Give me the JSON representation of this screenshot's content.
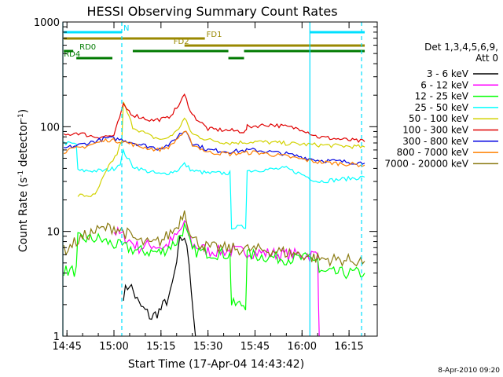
{
  "chart_data": {
    "type": "line",
    "title": "HESSI Observing Summary Count Rates",
    "xlabel": "Start Time (17-Apr-04 14:43:42)",
    "ylabel_main": "Count Rate (s",
    "ylabel_sup1": "-1",
    "ylabel_mid": " detector",
    "ylabel_sup2": "-1",
    "ylabel_end": ")",
    "y_scale": "log",
    "ylim": [
      1,
      1000
    ],
    "xlim": [
      "14:43:42",
      "16:24:00"
    ],
    "x_ticks": [
      "14:45",
      "15:00",
      "15:15",
      "15:30",
      "15:45",
      "16:00",
      "16:15"
    ],
    "y_ticks": [
      "1",
      "10",
      "100",
      "1000"
    ],
    "legend_header": [
      "Det 1,3,4,5,6,9,",
      "Att 0"
    ],
    "footer_date": "8-Apr-2010 09:20",
    "series": [
      {
        "name": "3 - 6 keV",
        "color": "#000000",
        "points": [
          [
            "15:03:00",
            2.5
          ],
          [
            "15:05:00",
            3.2
          ],
          [
            "15:08:00",
            2.0
          ],
          [
            "15:12:00",
            1.5
          ],
          [
            "15:15:00",
            1.8
          ],
          [
            "15:18:00",
            2.5
          ],
          [
            "15:20:00",
            5.0
          ],
          [
            "15:21:00",
            8.0
          ],
          [
            "15:22:30",
            9.0
          ],
          [
            "15:24:00",
            5.0
          ],
          [
            "15:26:00",
            1.0
          ]
        ]
      },
      {
        "name": "6 - 12 keV",
        "color": "#ff00ff",
        "points": [
          [
            "15:00:00",
            10.0
          ],
          [
            "15:03:00",
            9.0
          ],
          [
            "15:08:00",
            7.0
          ],
          [
            "15:12:00",
            7.5
          ],
          [
            "15:16:00",
            7.0
          ],
          [
            "15:20:00",
            9.0
          ],
          [
            "15:22:30",
            12.0
          ],
          [
            "15:25:00",
            7.5
          ],
          [
            "15:30:00",
            6.5
          ],
          [
            "15:38:00",
            6.5
          ],
          [
            "15:45:00",
            6.3
          ],
          [
            "15:55:00",
            6.0
          ],
          [
            "16:05:00",
            6.0
          ],
          [
            "16:05:30",
            1.0
          ]
        ]
      },
      {
        "name": "12 - 25 keV",
        "color": "#00ff00",
        "points": [
          [
            "14:44:00",
            4.2
          ],
          [
            "14:48:00",
            4.2
          ],
          [
            "14:48:30",
            8.5
          ],
          [
            "14:55:00",
            8.5
          ],
          [
            "15:00:00",
            7.5
          ],
          [
            "15:08:00",
            6.5
          ],
          [
            "15:15:00",
            6.3
          ],
          [
            "15:20:00",
            8.0
          ],
          [
            "15:22:30",
            11.0
          ],
          [
            "15:25:00",
            6.5
          ],
          [
            "15:37:00",
            6.0
          ],
          [
            "15:37:30",
            2.0
          ],
          [
            "15:42:00",
            2.0
          ],
          [
            "15:42:30",
            6.0
          ],
          [
            "15:55:00",
            5.5
          ],
          [
            "16:05:00",
            5.5
          ],
          [
            "16:05:30",
            4.0
          ],
          [
            "16:20:00",
            4.0
          ]
        ]
      },
      {
        "name": "25 - 50 keV",
        "color": "#00ffff",
        "points": [
          [
            "14:44:00",
            70
          ],
          [
            "14:48:00",
            68
          ],
          [
            "14:48:30",
            38
          ],
          [
            "14:57:00",
            38
          ],
          [
            "15:00:00",
            40
          ],
          [
            "15:02:00",
            45
          ],
          [
            "15:03:00",
            58
          ],
          [
            "15:06:00",
            42
          ],
          [
            "15:10:00",
            38
          ],
          [
            "15:15:00",
            35
          ],
          [
            "15:20:00",
            38
          ],
          [
            "15:22:30",
            44
          ],
          [
            "15:25:00",
            38
          ],
          [
            "15:30:00",
            36
          ],
          [
            "15:37:00",
            36
          ],
          [
            "15:37:30",
            11
          ],
          [
            "15:42:00",
            11
          ],
          [
            "15:42:30",
            38
          ],
          [
            "15:55:00",
            40
          ],
          [
            "16:00:00",
            35
          ],
          [
            "16:05:00",
            30
          ],
          [
            "16:20:00",
            33
          ]
        ]
      },
      {
        "name": "50 - 100 keV",
        "color": "#d2d200",
        "points": [
          [
            "14:48:30",
            22
          ],
          [
            "14:54:00",
            22
          ],
          [
            "14:56:00",
            30
          ],
          [
            "14:59:00",
            45
          ],
          [
            "15:01:00",
            55
          ],
          [
            "15:02:30",
            75
          ],
          [
            "15:03:00",
            170
          ],
          [
            "15:06:00",
            100
          ],
          [
            "15:12:00",
            80
          ],
          [
            "15:16:00",
            75
          ],
          [
            "15:20:00",
            90
          ],
          [
            "15:22:30",
            120
          ],
          [
            "15:25:00",
            85
          ],
          [
            "15:30:00",
            75
          ],
          [
            "15:37:00",
            70
          ],
          [
            "15:45:00",
            72
          ],
          [
            "16:00:00",
            68
          ],
          [
            "16:20:00",
            64
          ]
        ]
      },
      {
        "name": "100 - 300 keV",
        "color": "#e00000",
        "points": [
          [
            "14:44:00",
            82
          ],
          [
            "14:48:00",
            88
          ],
          [
            "14:54:00",
            80
          ],
          [
            "15:00:00",
            82
          ],
          [
            "15:03:00",
            160
          ],
          [
            "15:06:00",
            130
          ],
          [
            "15:12:00",
            115
          ],
          [
            "15:17:00",
            120
          ],
          [
            "15:20:00",
            150
          ],
          [
            "15:22:30",
            200
          ],
          [
            "15:25:00",
            130
          ],
          [
            "15:30:00",
            95
          ],
          [
            "15:37:00",
            92
          ],
          [
            "15:42:00",
            90
          ],
          [
            "15:42:30",
            100
          ],
          [
            "15:50:00",
            105
          ],
          [
            "16:00:00",
            95
          ],
          [
            "16:05:00",
            80
          ],
          [
            "16:20:00",
            72
          ]
        ]
      },
      {
        "name": "300 - 800 keV",
        "color": "#0000e0",
        "points": [
          [
            "14:44:00",
            62
          ],
          [
            "14:50:00",
            68
          ],
          [
            "14:58:00",
            78
          ],
          [
            "15:03:00",
            75
          ],
          [
            "15:08:00",
            68
          ],
          [
            "15:14:00",
            62
          ],
          [
            "15:18:00",
            68
          ],
          [
            "15:21:00",
            85
          ],
          [
            "15:23:00",
            92
          ],
          [
            "15:25:00",
            70
          ],
          [
            "15:30:00",
            60
          ],
          [
            "15:37:00",
            58
          ],
          [
            "15:45:00",
            60
          ],
          [
            "15:55:00",
            55
          ],
          [
            "16:05:00",
            48
          ],
          [
            "16:20:00",
            45
          ]
        ]
      },
      {
        "name": "800 - 7000 keV",
        "color": "#ff8000",
        "points": [
          [
            "14:44:00",
            58
          ],
          [
            "14:50:00",
            64
          ],
          [
            "14:58:00",
            75
          ],
          [
            "15:03:00",
            72
          ],
          [
            "15:08:00",
            65
          ],
          [
            "15:14:00",
            60
          ],
          [
            "15:18:00",
            65
          ],
          [
            "15:21:00",
            82
          ],
          [
            "15:23:00",
            88
          ],
          [
            "15:25:00",
            68
          ],
          [
            "15:30:00",
            57
          ],
          [
            "15:37:00",
            55
          ],
          [
            "15:45:00",
            57
          ],
          [
            "15:55:00",
            52
          ],
          [
            "16:05:00",
            46
          ],
          [
            "16:20:00",
            43
          ]
        ]
      },
      {
        "name": "7000 - 20000 keV",
        "color": "#8a7a10",
        "points": [
          [
            "14:44:00",
            6.5
          ],
          [
            "14:48:00",
            8.0
          ],
          [
            "14:52:00",
            9.5
          ],
          [
            "14:56:00",
            10.5
          ],
          [
            "15:00:00",
            11.0
          ],
          [
            "15:03:00",
            10.0
          ],
          [
            "15:08:00",
            8.0
          ],
          [
            "15:12:00",
            7.5
          ],
          [
            "15:16:00",
            8.5
          ],
          [
            "15:20:00",
            11.0
          ],
          [
            "15:22:30",
            16.0
          ],
          [
            "15:25:00",
            8.5
          ],
          [
            "15:30:00",
            7.0
          ],
          [
            "15:40:00",
            6.8
          ],
          [
            "15:50:00",
            6.6
          ],
          [
            "16:00:00",
            6.0
          ],
          [
            "16:05:00",
            5.5
          ],
          [
            "16:20:00",
            5.2
          ]
        ]
      }
    ],
    "flag_bars": [
      {
        "label": "N",
        "color": "#00e0ff",
        "spans": [
          [
            "14:44:00",
            "15:02:30"
          ],
          [
            "16:02:30",
            "16:20:00"
          ]
        ],
        "y": 1,
        "label_at": "15:03:00"
      },
      {
        "label": "FD1",
        "color": "#9a8800",
        "spans": [
          [
            "14:44:00",
            "15:29:00"
          ]
        ],
        "y": 2,
        "label_at": "15:29:30"
      },
      {
        "label": "FD2",
        "color": "#9a8800",
        "spans": [
          [
            "15:22:30",
            "16:20:00"
          ]
        ],
        "y": 3,
        "label_at": "15:19:00"
      },
      {
        "label": "RD0",
        "color": "#007a00",
        "spans": [
          [
            "14:44:00",
            "14:47:00"
          ],
          [
            "15:06:00",
            "15:36:30"
          ],
          [
            "15:41:30",
            "16:20:00"
          ]
        ],
        "y": 4,
        "label_at": "14:49:00"
      },
      {
        "label": "RD4",
        "color": "#007a00",
        "spans": [
          [
            "14:48:00",
            "14:59:30"
          ],
          [
            "15:36:30",
            "15:41:30"
          ]
        ],
        "y": 5,
        "label_at": "14:44:00"
      }
    ],
    "vlines_solid": [
      "14:43:42",
      "16:02:30"
    ],
    "vlines_dashed": [
      "15:02:30",
      "16:19:00"
    ]
  }
}
